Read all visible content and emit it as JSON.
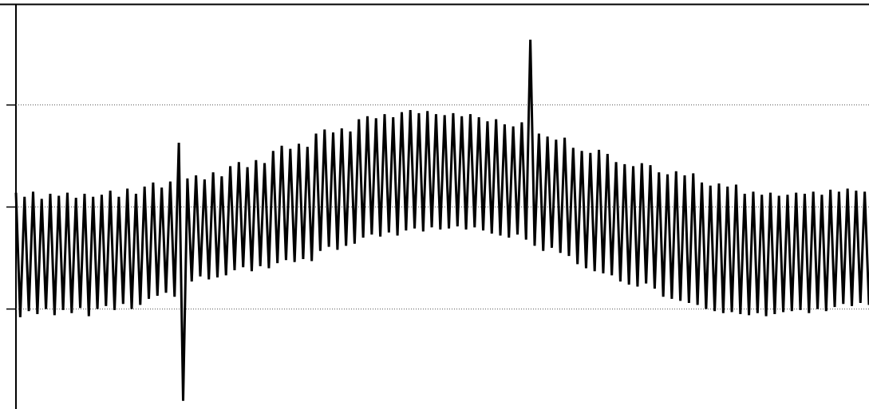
{
  "chart_data": {
    "type": "line",
    "color": "#000000",
    "ylim": [
      0.02,
      3.99
    ],
    "yticks": [
      1,
      2,
      3
    ],
    "grid": true,
    "values": [
      2.14,
      0.92,
      2.1,
      0.98,
      2.15,
      0.95,
      2.08,
      1.0,
      2.13,
      0.94,
      2.11,
      0.99,
      2.14,
      0.96,
      2.09,
      1.01,
      2.13,
      0.93,
      2.1,
      1.0,
      2.12,
      1.03,
      2.16,
      0.99,
      2.1,
      1.05,
      2.18,
      1.0,
      2.13,
      1.04,
      2.2,
      1.1,
      2.24,
      1.13,
      2.19,
      1.16,
      2.25,
      1.12,
      2.63,
      0.1,
      2.28,
      1.27,
      2.31,
      1.32,
      2.27,
      1.29,
      2.34,
      1.31,
      2.3,
      1.33,
      2.4,
      1.38,
      2.44,
      1.41,
      2.39,
      1.37,
      2.46,
      1.42,
      2.43,
      1.4,
      2.55,
      1.45,
      2.6,
      1.48,
      2.57,
      1.46,
      2.62,
      1.49,
      2.59,
      1.47,
      2.72,
      1.57,
      2.76,
      1.61,
      2.73,
      1.58,
      2.77,
      1.62,
      2.74,
      1.64,
      2.86,
      1.7,
      2.89,
      1.73,
      2.87,
      1.71,
      2.91,
      1.75,
      2.88,
      1.72,
      2.93,
      1.77,
      2.95,
      1.79,
      2.92,
      1.76,
      2.94,
      1.8,
      2.91,
      1.78,
      2.9,
      1.79,
      2.92,
      1.81,
      2.89,
      1.78,
      2.91,
      1.8,
      2.88,
      1.77,
      2.84,
      1.74,
      2.86,
      1.72,
      2.81,
      1.7,
      2.79,
      1.73,
      2.83,
      1.68,
      3.64,
      1.62,
      2.72,
      1.57,
      2.69,
      1.6,
      2.66,
      1.55,
      2.68,
      1.52,
      2.58,
      1.44,
      2.55,
      1.4,
      2.53,
      1.37,
      2.56,
      1.35,
      2.52,
      1.33,
      2.44,
      1.27,
      2.42,
      1.24,
      2.4,
      1.22,
      2.43,
      1.25,
      2.41,
      1.2,
      2.34,
      1.12,
      2.32,
      1.1,
      2.35,
      1.08,
      2.31,
      1.06,
      2.33,
      1.04,
      2.24,
      1.0,
      2.21,
      0.98,
      2.23,
      0.96,
      2.2,
      0.97,
      2.22,
      0.95,
      2.13,
      0.94,
      2.15,
      0.96,
      2.12,
      0.93,
      2.14,
      0.95,
      2.11,
      0.97,
      2.12,
      0.98,
      2.14,
      0.99,
      2.13,
      0.96,
      2.15,
      1.0,
      2.12,
      0.98,
      2.17,
      1.02,
      2.15,
      1.05,
      2.18,
      1.03,
      2.16,
      1.06,
      2.15,
      1.04
    ]
  }
}
